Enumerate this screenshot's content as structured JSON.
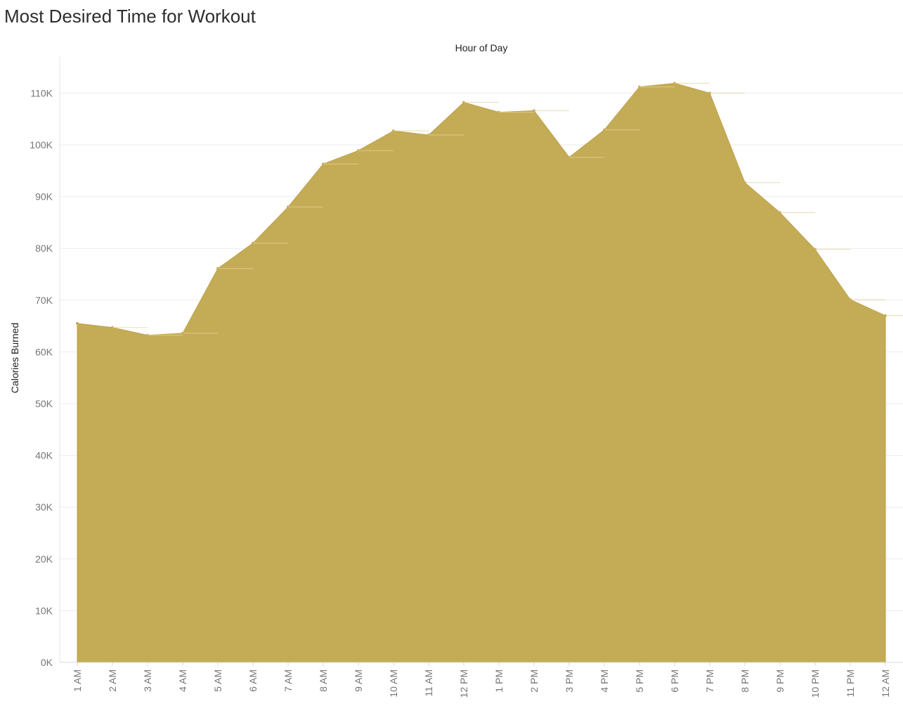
{
  "title": "Most Desired Time for Workout",
  "chart_data": {
    "type": "area",
    "title": "Most Desired Time for Workout",
    "xlabel": "Hour of Day",
    "ylabel": "Calories Burned",
    "categories": [
      "1 AM",
      "2 AM",
      "3 AM",
      "4 AM",
      "5 AM",
      "6 AM",
      "7 AM",
      "8 AM",
      "9 AM",
      "10 AM",
      "11 AM",
      "12 PM",
      "1 PM",
      "2 PM",
      "3 PM",
      "4 PM",
      "5 PM",
      "6 PM",
      "7 PM",
      "8 PM",
      "9 PM",
      "10 PM",
      "11 PM",
      "12 AM"
    ],
    "values": [
      65500,
      64700,
      63200,
      63600,
      76100,
      81000,
      88000,
      96300,
      98900,
      102700,
      101900,
      108200,
      106300,
      106600,
      97600,
      102900,
      111200,
      111900,
      110000,
      92700,
      86900,
      79800,
      70100,
      67000
    ],
    "yticks": [
      "0K",
      "10K",
      "20K",
      "30K",
      "40K",
      "50K",
      "60K",
      "70K",
      "80K",
      "90K",
      "100K",
      "110K"
    ],
    "ylim": [
      0,
      110000
    ],
    "grid": true,
    "color": "#c4ab55"
  }
}
